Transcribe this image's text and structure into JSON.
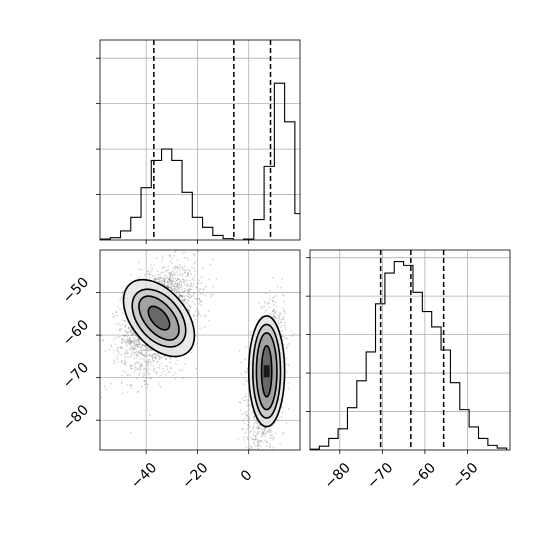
{
  "chart_data": {
    "type": "corner",
    "title": "",
    "parameters": [
      "",
      ""
    ],
    "panels": [
      {
        "id": "hist-x",
        "type": "histogram",
        "xlim": [
          -58,
          20
        ],
        "ylim": [
          0,
          4.4
        ],
        "x_ticks": [
          -40,
          -20,
          0
        ],
        "y_ticks": [
          1,
          2,
          3,
          4
        ],
        "x_tick_labels": [],
        "y_tick_labels": [],
        "grid": true,
        "bins_start": -58,
        "bin_width": 4,
        "counts": [
          0.02,
          0.05,
          0.2,
          0.5,
          1.15,
          1.75,
          2.0,
          1.75,
          1.05,
          0.5,
          0.28,
          0.1,
          0.03,
          0.0,
          0.02,
          0.45,
          1.62,
          3.45,
          2.6,
          0.58,
          0.08
        ],
        "quantile_lines": [
          -37,
          -5.8,
          8.5
        ]
      },
      {
        "id": "scatter-xy",
        "type": "scatter_contour",
        "xlim": [
          -58,
          20
        ],
        "ylim": [
          -87,
          -40
        ],
        "x_ticks": [
          -40,
          -20,
          0
        ],
        "y_ticks": [
          -50,
          -60,
          -70,
          -80
        ],
        "x_tick_labels": [
          "−40",
          "−20",
          "0"
        ],
        "y_tick_labels": [
          "−50",
          "−60",
          "−70",
          "−80"
        ],
        "grid": true,
        "clusters": [
          {
            "center": [
              -35,
              -56
            ],
            "std": [
              7,
              6
            ],
            "points": 2600
          },
          {
            "center": [
              7,
              -70
            ],
            "std": [
              3.3,
              7
            ],
            "points": 2400
          }
        ],
        "contours": [
          {
            "center": [
              -35,
              -56
            ],
            "radii": [
              [
                2.9,
                3.3
              ],
              [
                5.6,
                6.1
              ],
              [
                8.2,
                7.8
              ],
              [
                10.6,
                10.5
              ]
            ],
            "angle": 40
          },
          {
            "center": [
              7,
              -68.5
            ],
            "radii": [
              [
                2.0,
                6.0
              ],
              [
                4.0,
                9.0
              ],
              [
                5.4,
                11.0
              ],
              [
                7.0,
                13.0
              ]
            ],
            "angle": 0
          }
        ]
      },
      {
        "id": "hist-y",
        "type": "histogram",
        "xlim": [
          -87,
          -40
        ],
        "ylim": [
          0,
          5.2
        ],
        "x_ticks": [
          -80,
          -70,
          -60,
          -50
        ],
        "y_ticks": [
          1,
          2,
          3,
          4,
          5
        ],
        "x_tick_labels": [
          "−80",
          "−70",
          "−60",
          "−50"
        ],
        "y_tick_labels": [],
        "grid": true,
        "bins_start": -87,
        "bin_width": 2.2,
        "counts": [
          0.02,
          0.1,
          0.3,
          0.55,
          1.1,
          1.8,
          2.55,
          3.8,
          4.6,
          4.9,
          4.8,
          4.1,
          3.6,
          3.2,
          2.6,
          1.75,
          1.05,
          0.6,
          0.3,
          0.12,
          0.05
        ],
        "quantile_lines": [
          -70.4,
          -63.3,
          -55.6
        ]
      }
    ]
  }
}
